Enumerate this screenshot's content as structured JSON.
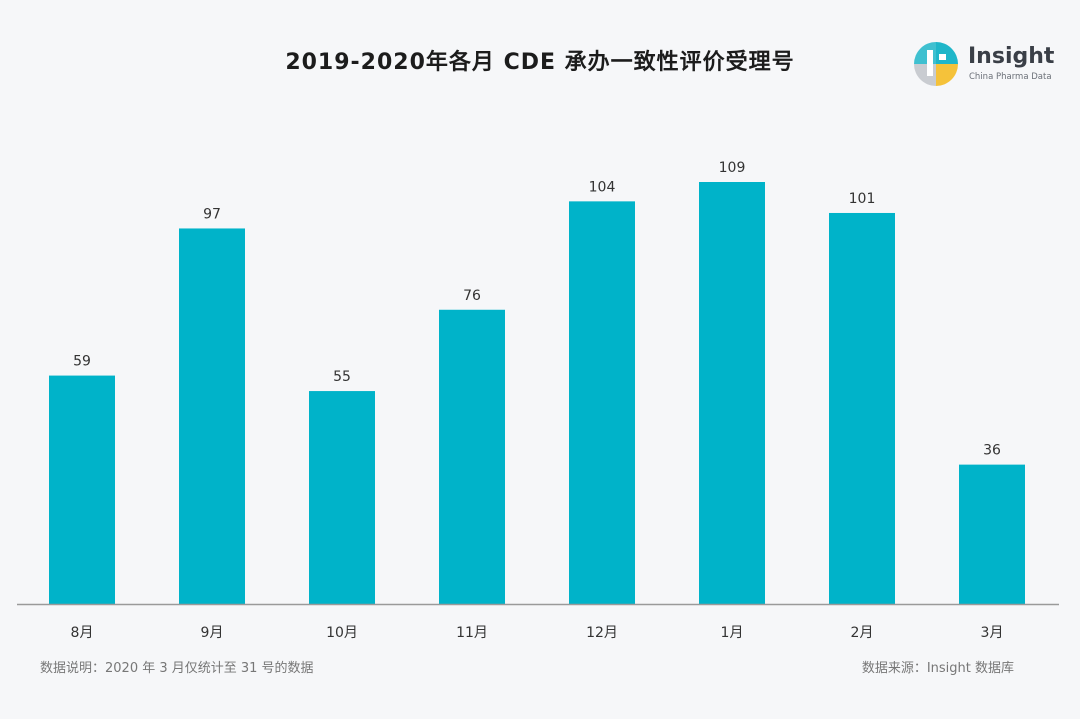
{
  "header": {
    "title": "2019-2020年各月 CDE 承办一致性评价受理号"
  },
  "logo": {
    "name": "Insight",
    "tagline": "China Pharma Data"
  },
  "colors": {
    "bar": "#00b3c9",
    "axis": "#9a9a9a",
    "logo_teal": "#1fb6c9",
    "logo_yellow": "#f5c23a",
    "logo_gray": "#c9ccd1"
  },
  "chart_data": {
    "type": "bar",
    "title": "2019-2020年各月 CDE 承办一致性评价受理号",
    "categories": [
      "8月",
      "9月",
      "10月",
      "11月",
      "12月",
      "1月",
      "2月",
      "3月"
    ],
    "values": [
      59,
      97,
      55,
      76,
      104,
      109,
      101,
      36
    ],
    "data_labels": true,
    "grid": false,
    "legend": "none",
    "ylim": [
      0,
      109
    ]
  },
  "footer": {
    "note": "数据说明：2020 年 3 月仅统计至 31 号的数据",
    "source": "数据来源：Insight 数据库"
  }
}
